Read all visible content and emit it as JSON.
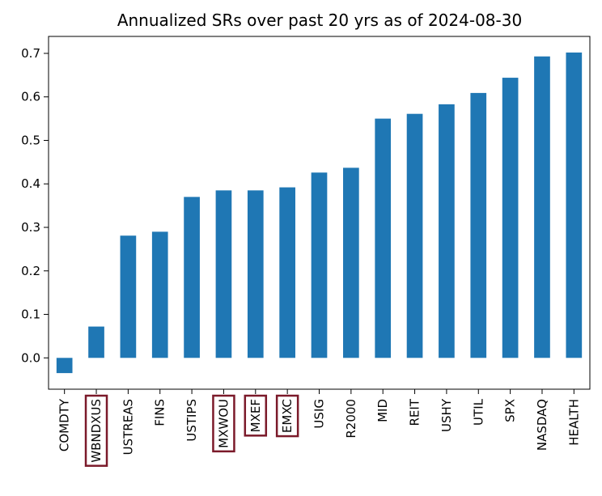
{
  "chart_data": {
    "type": "bar",
    "title": "Annualized SRs over past 20 yrs as of 2024-08-30",
    "xlabel": "",
    "ylabel": "",
    "categories": [
      "COMDTY",
      "WBNDXUS",
      "USTREAS",
      "FINS",
      "USTIPS",
      "MXWOU",
      "MXEF",
      "EMXC",
      "USIG",
      "R2000",
      "MID",
      "REIT",
      "USHY",
      "UTIL",
      "SPX",
      "NASDAQ",
      "HEALTH"
    ],
    "values": [
      -0.035,
      0.072,
      0.281,
      0.29,
      0.37,
      0.385,
      0.385,
      0.392,
      0.426,
      0.437,
      0.55,
      0.561,
      0.583,
      0.609,
      0.644,
      0.693,
      0.702
    ],
    "highlighted": [
      "WBNDXUS",
      "MXWOU",
      "MXEF",
      "EMXC"
    ],
    "ylim": [
      -0.072,
      0.739
    ],
    "yticks": [
      0.0,
      0.1,
      0.2,
      0.3,
      0.4,
      0.5,
      0.6,
      0.7
    ],
    "ytick_labels": [
      "0.0",
      "0.1",
      "0.2",
      "0.3",
      "0.4",
      "0.5",
      "0.6",
      "0.7"
    ],
    "grid": false,
    "legend": "none",
    "colors": {
      "bar": "#1f77b4",
      "highlight_box": "#7b1a2a",
      "axis": "#000000"
    }
  }
}
